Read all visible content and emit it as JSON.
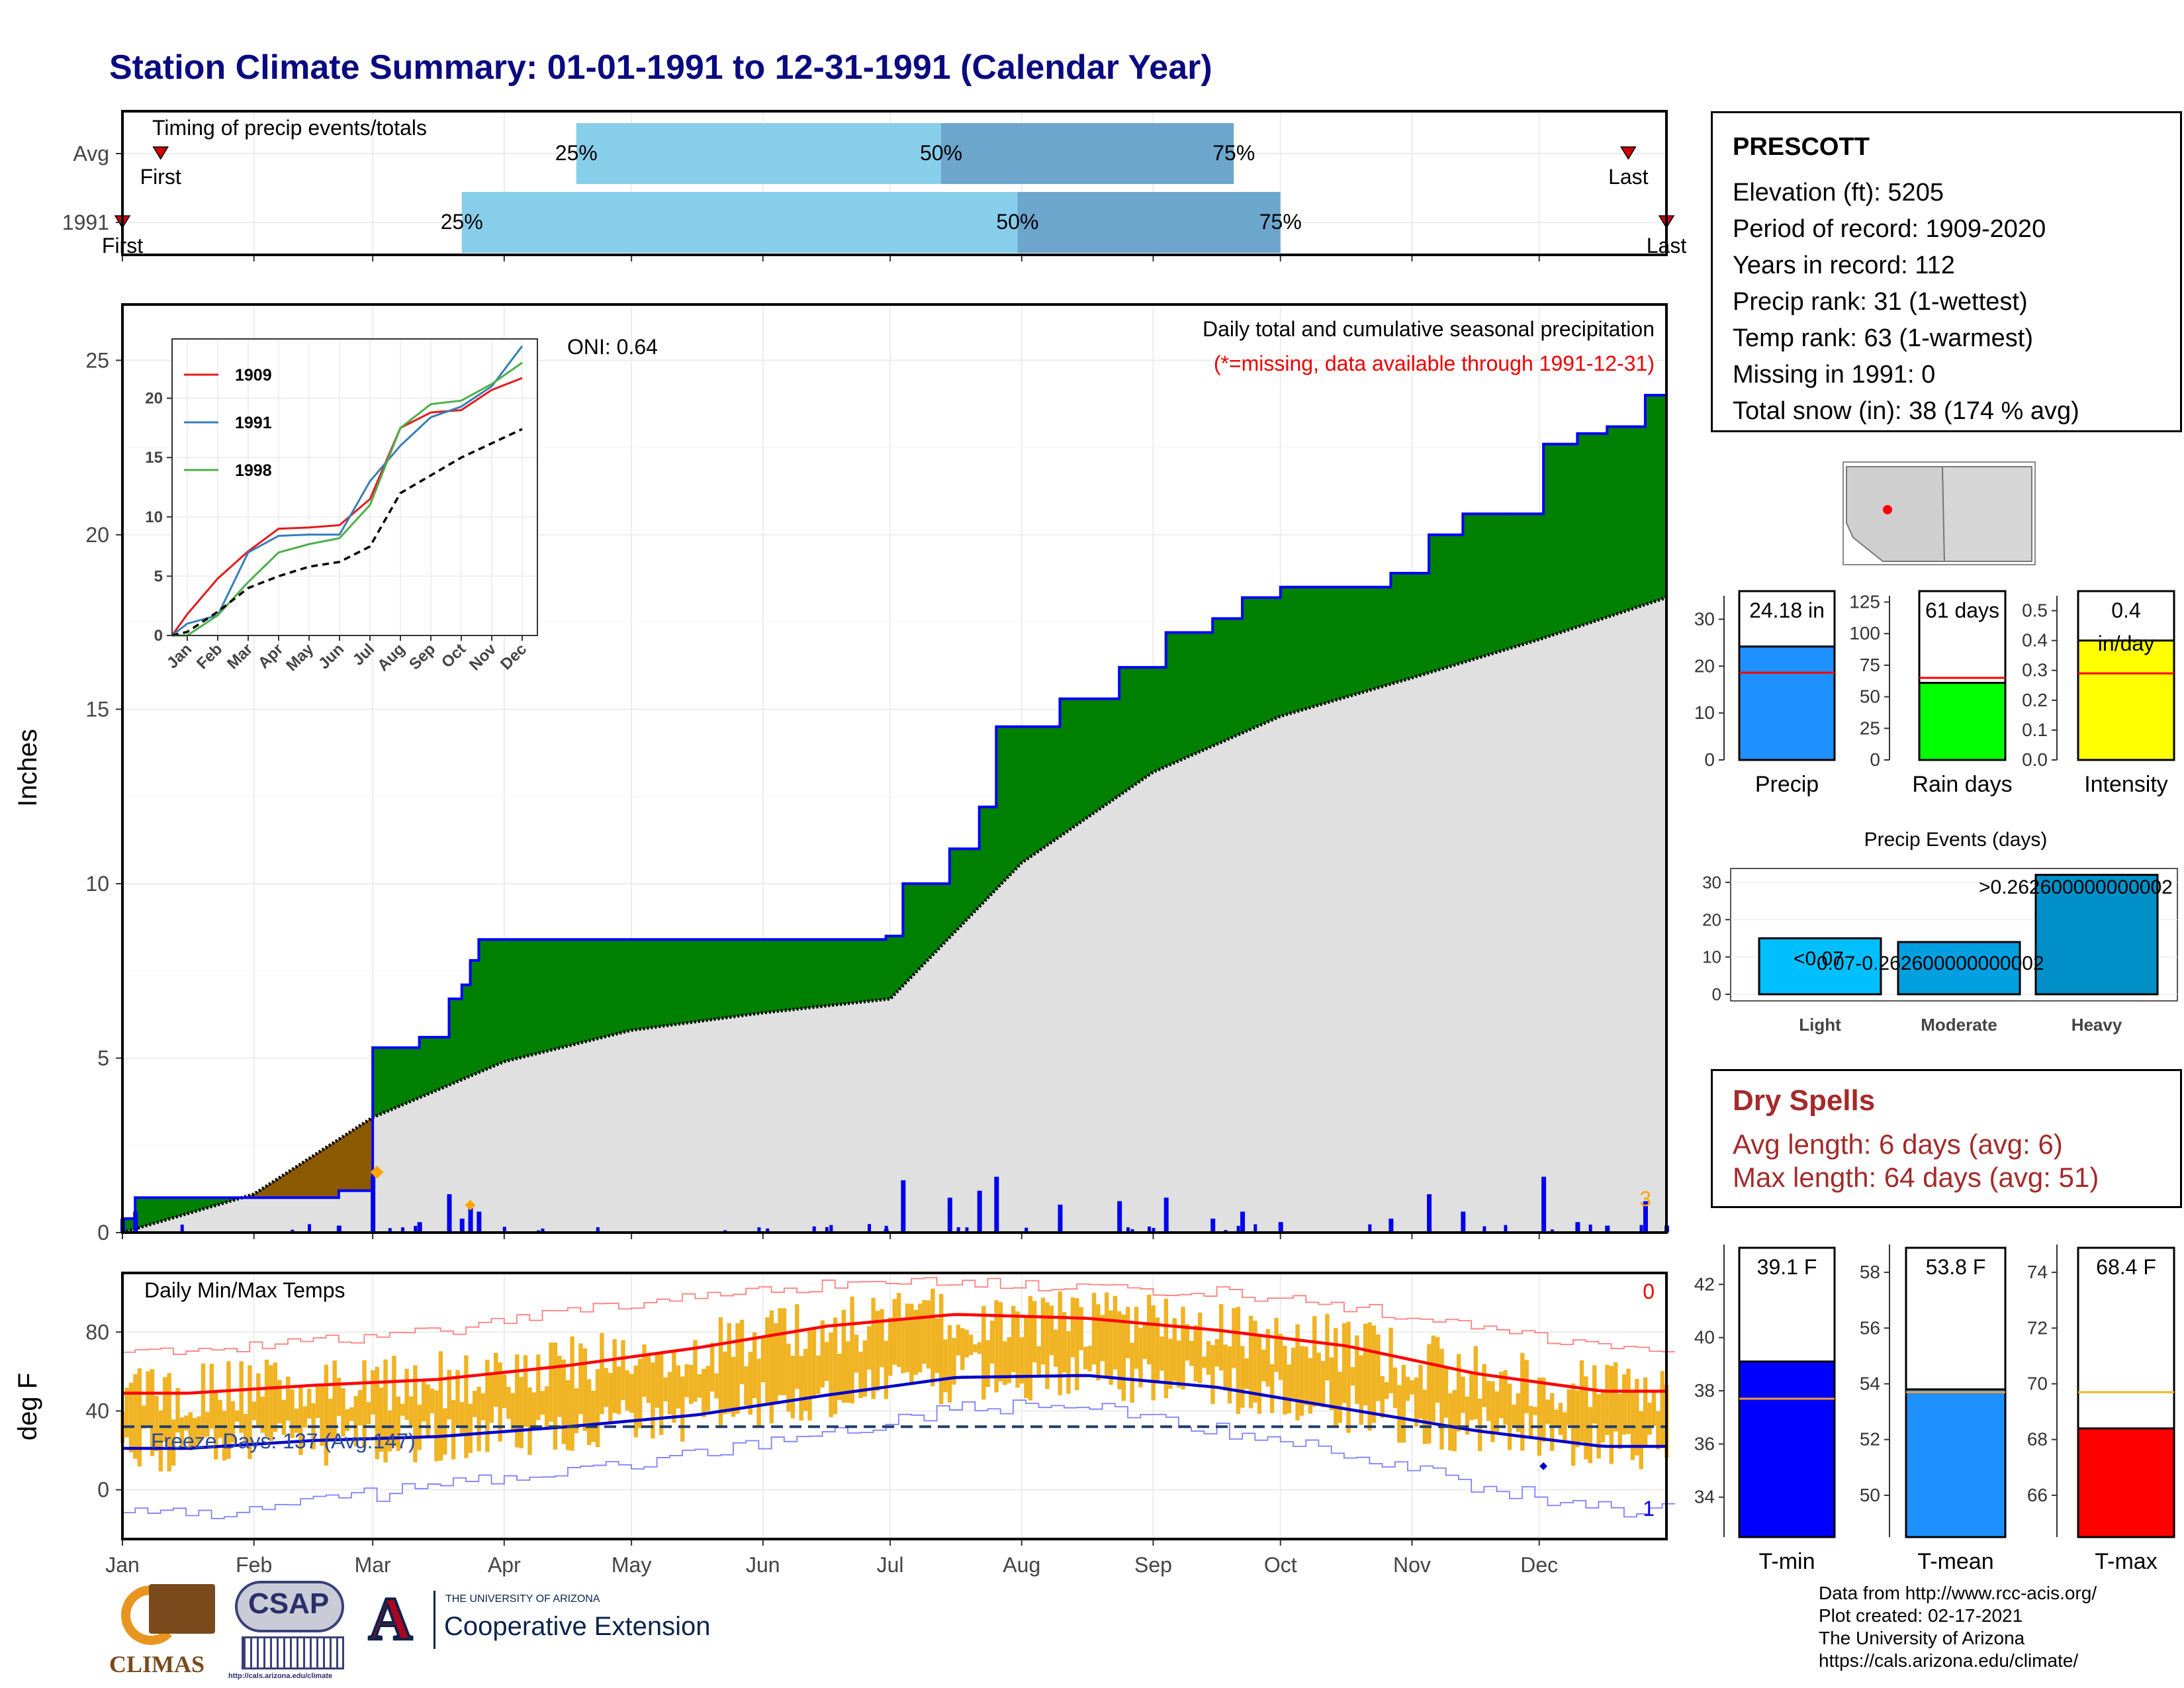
{
  "title": "Station Climate Summary: 01-01-1991 to 12-31-1991 (Calendar Year)",
  "timing": {
    "label": "Timing of precip events/totals",
    "rows": [
      {
        "name": "Avg",
        "first_label": "First",
        "last_label": "Last",
        "p25_label": "25%",
        "p50_label": "50%",
        "p75_label": "75%"
      },
      {
        "name": "1991",
        "first_label": "First",
        "last_label": "Last",
        "p25_label": "25%",
        "p50_label": "50%",
        "p75_label": "75%"
      }
    ]
  },
  "months": [
    "Jan",
    "Feb",
    "Mar",
    "Apr",
    "May",
    "Jun",
    "Jul",
    "Aug",
    "Sep",
    "Oct",
    "Nov",
    "Dec"
  ],
  "precip": {
    "ylabel": "Inches",
    "annotation_title": "Daily total and cumulative seasonal precipitation",
    "annotation_missing": "(*=missing, data available through 1991-12-31)",
    "oni": "ONI: 0.64",
    "corner_count": "3",
    "yticks": [
      "0",
      "5",
      "10",
      "15",
      "20",
      "25"
    ]
  },
  "inset": {
    "legend": [
      "1909",
      "1991",
      "1998"
    ],
    "yticks": [
      "0",
      "5",
      "10",
      "15",
      "20"
    ]
  },
  "temps": {
    "label": "Daily Min/Max Temps",
    "ylabel": "deg F",
    "freeze": "Freeze Days: 137 (Avg:147)",
    "corner_top": "0",
    "corner_bottom": "1",
    "yticks": [
      "0",
      "40",
      "80"
    ]
  },
  "station": {
    "name": "PRESCOTT",
    "lines": [
      "Elevation (ft): 5205",
      "Period of record: 1909-2020",
      "Years in record: 112",
      "Precip rank: 31 (1-wettest)",
      "Temp rank: 63 (1-warmest)",
      "Missing in 1991: 0",
      "Total snow (in): 38 (174 % avg)"
    ]
  },
  "mini_bars": [
    {
      "label": "Precip",
      "value_label": "24.18 in",
      "value_label2": "",
      "color": "#1e90ff",
      "yticks": [
        "0",
        "10",
        "20",
        "30"
      ]
    },
    {
      "label": "Rain days",
      "value_label": "61 days",
      "value_label2": "",
      "color": "#00ff00",
      "yticks": [
        "0",
        "25",
        "50",
        "75",
        "100",
        "125"
      ]
    },
    {
      "label": "Intensity",
      "value_label": "0.4",
      "value_label2": "in/day",
      "color": "#ffff00",
      "yticks": [
        "0.0",
        "0.1",
        "0.2",
        "0.3",
        "0.4",
        "0.5"
      ]
    }
  ],
  "events": {
    "title": "Precip Events (days)",
    "yticks": [
      "0",
      "10",
      "20",
      "30"
    ],
    "labels": [
      "Light",
      "Moderate",
      "Heavy"
    ],
    "bar_labels": [
      "<0.07",
      "0.07-0.262600000000002",
      ">0.262600000000002"
    ]
  },
  "dry_spells": {
    "title": "Dry Spells",
    "avg": "Avg length: 6 days (avg: 6)",
    "max": "Max length: 64 days (avg: 51)"
  },
  "temp_bars": [
    {
      "label": "T-min",
      "value_label": "39.1 F",
      "color": "#0000ff",
      "yticks": [
        "34",
        "36",
        "38",
        "40",
        "42"
      ]
    },
    {
      "label": "T-mean",
      "value_label": "53.8 F",
      "color": "#1e90ff",
      "yticks": [
        "50",
        "52",
        "54",
        "56",
        "58"
      ]
    },
    {
      "label": "T-max",
      "value_label": "68.4 F",
      "color": "#ff0000",
      "yticks": [
        "66",
        "68",
        "70",
        "72",
        "74"
      ]
    }
  ],
  "footer": {
    "lines": [
      "Data from http://www.rcc-acis.org/",
      "Plot created: 02-17-2021",
      "The University of Arizona",
      "https://cals.arizona.edu/climate/"
    ]
  },
  "logos": {
    "climas": "CLIMAS",
    "csap": "CSAP",
    "csap_url": "http://cals.arizona.edu/climate",
    "ua_small": "THE UNIVERSITY OF ARIZONA",
    "ua_big": "Cooperative Extension",
    "ua_mark": "A"
  },
  "colors": {
    "observed_line": "#0000ff",
    "surplus": "#008000",
    "deficit": "#8b5a00",
    "climatology": "#e0e0e0",
    "quartile_light": "#87ceeb",
    "quartile_dark": "#6ca6cd",
    "temp_bar": "#f0b323",
    "tmax_norm": "#ff0000",
    "tmin_norm": "#0000cc"
  },
  "chart_data": [
    {
      "type": "bar",
      "title": "Timing of precip events/totals",
      "categories": [
        "Avg",
        "1991"
      ],
      "series": [
        {
          "name": "First",
          "values": [
            "Jan 10",
            "Jan 1"
          ]
        },
        {
          "name": "25%",
          "values": [
            "Apr 18",
            "Mar 22"
          ]
        },
        {
          "name": "50%",
          "values": [
            "Jul 13",
            "Jul 31"
          ]
        },
        {
          "name": "75%",
          "values": [
            "Sep 20",
            "Oct 1"
          ]
        },
        {
          "name": "Last",
          "values": [
            "Dec 22",
            "Dec 31"
          ]
        }
      ]
    },
    {
      "type": "area",
      "title": "Daily total and cumulative seasonal precipitation",
      "ylabel": "Inches",
      "ylim": [
        0,
        26
      ],
      "series": [
        {
          "name": "1991",
          "x": [
            "Jan 1",
            "Jan 4",
            "Jan 19",
            "Feb 21",
            "Mar 1",
            "Mar 12",
            "Mar 19",
            "Mar 22",
            "Mar 24",
            "Mar 26",
            "Jun 30",
            "Jul 4",
            "Jul 15",
            "Jul 22",
            "Jul 26",
            "Jul 31",
            "Aug 10",
            "Aug 24",
            "Sep 4",
            "Sep 15",
            "Sep 22",
            "Oct 1",
            "Oct 12",
            "Oct 27",
            "Nov 5",
            "Nov 13",
            "Dec 2",
            "Dec 10",
            "Dec 17",
            "Dec 26",
            "Dec 31"
          ],
          "values": [
            0.4,
            1.0,
            1.0,
            1.2,
            5.3,
            5.6,
            6.7,
            7.1,
            7.8,
            8.4,
            8.5,
            10.0,
            11.0,
            12.2,
            14.5,
            14.5,
            15.3,
            16.2,
            17.2,
            17.6,
            18.2,
            18.5,
            18.5,
            18.9,
            20.0,
            20.6,
            22.6,
            22.9,
            23.1,
            24.0,
            24.2
          ]
        },
        {
          "name": "Avg",
          "x": [
            "Jan 1",
            "Feb 1",
            "Mar 1",
            "Apr 1",
            "May 1",
            "Jun 1",
            "Jul 1",
            "Aug 1",
            "Sep 1",
            "Oct 1",
            "Nov 1",
            "Dec 1",
            "Dec 31"
          ],
          "values": [
            0.0,
            1.1,
            3.3,
            4.9,
            5.8,
            6.3,
            6.7,
            10.6,
            13.2,
            14.8,
            15.9,
            17.0,
            18.2
          ]
        }
      ]
    },
    {
      "type": "line",
      "title": "",
      "ylim": [
        0,
        25
      ],
      "categories": [
        "Jan",
        "Feb",
        "Mar",
        "Apr",
        "May",
        "Jun",
        "Jul",
        "Aug",
        "Sep",
        "Oct",
        "Nov",
        "Dec"
      ],
      "series": [
        {
          "name": "1909",
          "values": [
            1.8,
            4.8,
            7.1,
            9.0,
            9.1,
            9.3,
            11.5,
            17.5,
            18.8,
            19.0,
            20.7,
            21.7
          ]
        },
        {
          "name": "1991",
          "values": [
            1.0,
            1.7,
            7.0,
            8.4,
            8.5,
            8.5,
            13.0,
            16.0,
            18.4,
            19.3,
            21.0,
            24.4
          ]
        },
        {
          "name": "1998",
          "values": [
            0.0,
            1.7,
            4.5,
            7.0,
            7.7,
            8.2,
            11.0,
            17.5,
            19.5,
            19.8,
            21.2,
            23.0
          ]
        },
        {
          "name": "Avg",
          "values": [
            0.3,
            2.0,
            4.0,
            5.0,
            5.8,
            6.2,
            7.5,
            12.0,
            13.5,
            15.0,
            16.2,
            17.4
          ]
        }
      ]
    },
    {
      "type": "line",
      "title": "Daily Min/Max Temps",
      "ylabel": "deg F",
      "ylim": [
        -25,
        110
      ],
      "categories": [
        "Jan",
        "Feb",
        "Mar",
        "Apr",
        "May",
        "Jun",
        "Jul",
        "Aug",
        "Sep",
        "Oct",
        "Nov",
        "Dec"
      ],
      "series": [
        {
          "name": "Tmax normal",
          "values": [
            49,
            53,
            56,
            63,
            72,
            83,
            89,
            87,
            81,
            73,
            59,
            50
          ]
        },
        {
          "name": "Tmin normal",
          "values": [
            21,
            25,
            27,
            32,
            38,
            48,
            57,
            58,
            52,
            41,
            30,
            22
          ]
        },
        {
          "name": "Tmax record",
          "values": [
            71,
            75,
            80,
            90,
            98,
            104,
            106,
            102,
            100,
            93,
            82,
            71
          ]
        },
        {
          "name": "Tmin record",
          "values": [
            -12,
            -6,
            2,
            10,
            18,
            27,
            42,
            42,
            31,
            18,
            2,
            -10
          ]
        }
      ]
    },
    {
      "type": "bar",
      "categories": [
        "Precip"
      ],
      "values": [
        24.18
      ],
      "ylim": [
        0,
        35
      ]
    },
    {
      "type": "bar",
      "categories": [
        "Rain days"
      ],
      "values": [
        61
      ],
      "ylim": [
        0,
        130
      ]
    },
    {
      "type": "bar",
      "categories": [
        "Intensity"
      ],
      "values": [
        0.4
      ],
      "ylim": [
        0,
        0.55
      ]
    },
    {
      "type": "bar",
      "title": "Precip Events (days)",
      "categories": [
        "Light",
        "Moderate",
        "Heavy"
      ],
      "values": [
        15,
        14,
        32
      ],
      "ylim": [
        0,
        33
      ]
    },
    {
      "type": "bar",
      "categories": [
        "T-min"
      ],
      "values": [
        39.1
      ],
      "ylim": [
        32.5,
        43.5
      ]
    },
    {
      "type": "bar",
      "categories": [
        "T-mean"
      ],
      "values": [
        53.8
      ],
      "ylim": [
        48.5,
        59.0
      ]
    },
    {
      "type": "bar",
      "categories": [
        "T-max"
      ],
      "values": [
        68.4
      ],
      "ylim": [
        64.5,
        75.0
      ]
    }
  ]
}
